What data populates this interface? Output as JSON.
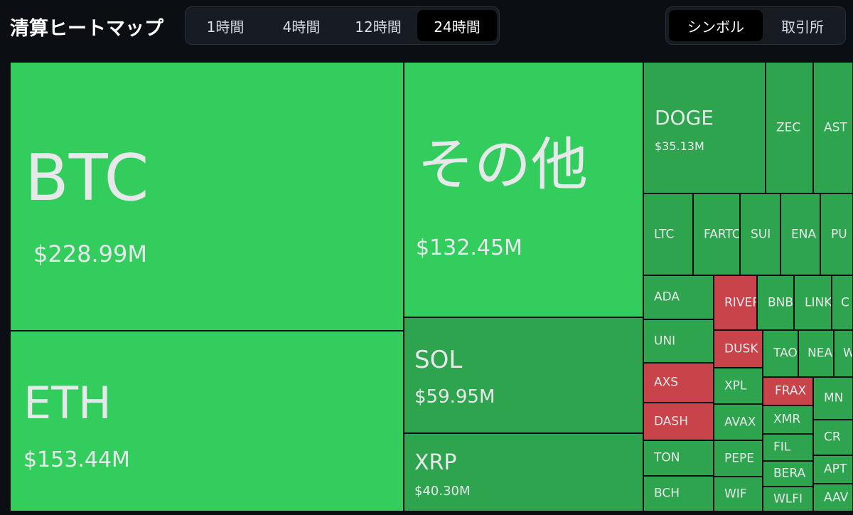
{
  "header": {
    "title": "清算ヒートマップ",
    "time_tabs": [
      "1時間",
      "4時間",
      "12時間",
      "24時間"
    ],
    "active_time_tab": "24時間",
    "group_tabs": [
      "シンボル",
      "取引所"
    ],
    "active_group_tab": "シンボル"
  },
  "colors": {
    "background": "#0b0e13",
    "bright_green": "#33cd5e",
    "dark_green": "#2fa44f",
    "red": "#c8434a"
  },
  "tiles": {
    "btc": {
      "symbol": "BTC",
      "value": "$228.99M"
    },
    "eth": {
      "symbol": "ETH",
      "value": "$153.44M"
    },
    "other": {
      "symbol": "その他",
      "value": "$132.45M"
    },
    "sol": {
      "symbol": "SOL",
      "value": "$59.95M"
    },
    "xrp": {
      "symbol": "XRP",
      "value": "$40.30M"
    },
    "doge": {
      "symbol": "DOGE",
      "value": "$35.13M"
    },
    "zec": {
      "symbol": "ZEC"
    },
    "ast": {
      "symbol": "AST"
    },
    "ltc": {
      "symbol": "LTC"
    },
    "fartc": {
      "symbol": "FARTC"
    },
    "sui": {
      "symbol": "SUI"
    },
    "ena": {
      "symbol": "ENA"
    },
    "pu": {
      "symbol": "PU"
    },
    "ada": {
      "symbol": "ADA"
    },
    "river": {
      "symbol": "RIVER"
    },
    "bnb": {
      "symbol": "BNB"
    },
    "link": {
      "symbol": "LINK"
    },
    "c": {
      "symbol": "C"
    },
    "uni": {
      "symbol": "UNI"
    },
    "dusk": {
      "symbol": "DUSK"
    },
    "tao": {
      "symbol": "TAO"
    },
    "nea": {
      "symbol": "NEA"
    },
    "w": {
      "symbol": "W"
    },
    "axs": {
      "symbol": "AXS"
    },
    "xpl": {
      "symbol": "XPL"
    },
    "frax": {
      "symbol": "FRAX"
    },
    "mn": {
      "symbol": "MN"
    },
    "dash": {
      "symbol": "DASH"
    },
    "avax": {
      "symbol": "AVAX"
    },
    "xmr": {
      "symbol": "XMR"
    },
    "cr": {
      "symbol": "CR"
    },
    "fil": {
      "symbol": "FIL"
    },
    "ton": {
      "symbol": "TON"
    },
    "pepe": {
      "symbol": "PEPE"
    },
    "bera": {
      "symbol": "BERA"
    },
    "apt": {
      "symbol": "APT"
    },
    "bch": {
      "symbol": "BCH"
    },
    "wif": {
      "symbol": "WIF"
    },
    "wlfi": {
      "symbol": "WLFI"
    },
    "aav": {
      "symbol": "AAV"
    }
  }
}
